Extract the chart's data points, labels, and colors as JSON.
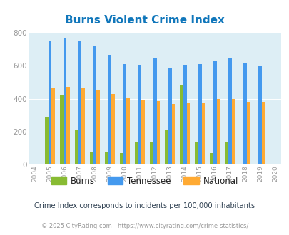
{
  "title": "Burns Violent Crime Index",
  "years": [
    2004,
    2005,
    2006,
    2007,
    2008,
    2009,
    2010,
    2011,
    2012,
    2013,
    2014,
    2015,
    2016,
    2017,
    2018,
    2019,
    2020
  ],
  "burns": [
    null,
    290,
    420,
    210,
    75,
    75,
    70,
    135,
    135,
    207,
    487,
    140,
    70,
    135,
    null,
    null,
    null
  ],
  "tennessee": [
    null,
    755,
    765,
    753,
    720,
    668,
    610,
    608,
    643,
    586,
    605,
    610,
    632,
    651,
    620,
    598,
    null
  ],
  "national": [
    null,
    469,
    474,
    466,
    455,
    429,
    403,
    390,
    387,
    368,
    376,
    375,
    399,
    399,
    382,
    380,
    null
  ],
  "bar_width": 0.22,
  "burns_color": "#88bb33",
  "tennessee_color": "#4499ee",
  "national_color": "#ffaa33",
  "bg_color": "#ddeef5",
  "plot_bg": "#ddeef5",
  "ylim": [
    0,
    800
  ],
  "yticks": [
    0,
    200,
    400,
    600,
    800
  ],
  "footnote1": "Crime Index corresponds to incidents per 100,000 inhabitants",
  "footnote2": "© 2025 CityRating.com - https://www.cityrating.com/crime-statistics/",
  "title_color": "#1177bb",
  "footnote1_color": "#334455",
  "footnote2_color": "#999999",
  "legend_text_color": "#222222",
  "tick_color": "#999999"
}
